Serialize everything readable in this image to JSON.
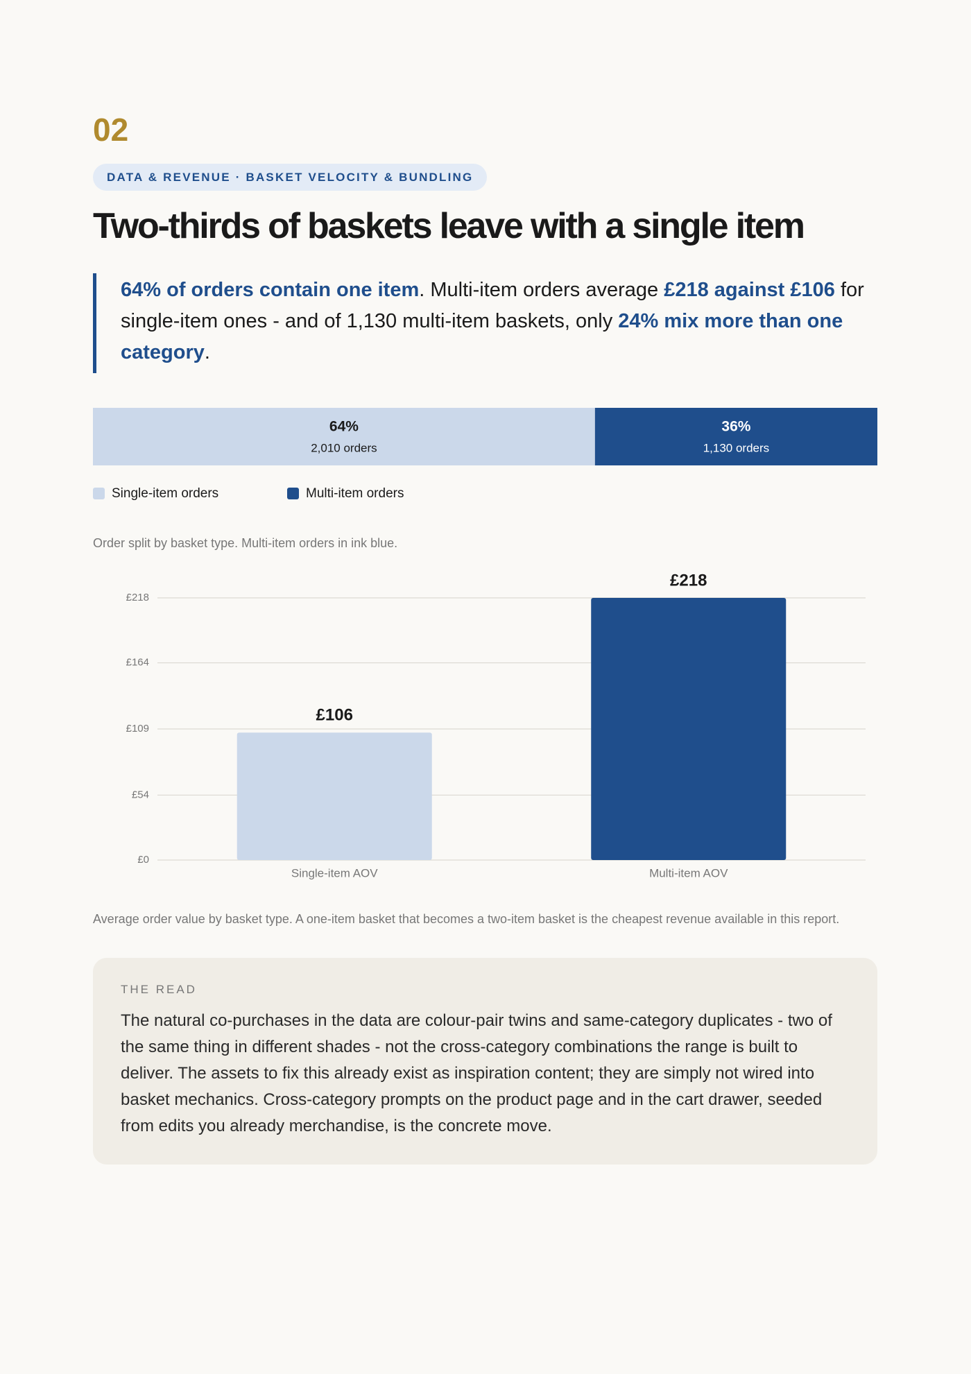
{
  "header": {
    "number": "02",
    "kicker": "DATA & REVENUE · BASKET VELOCITY & BUNDLING",
    "title": "Two-thirds of baskets leave with a single item"
  },
  "lead": [
    {
      "text": "64% of orders contain one item",
      "emphasis": true
    },
    {
      "text": ". Multi-item orders average ",
      "emphasis": false
    },
    {
      "text": "£218 against £106",
      "emphasis": true
    },
    {
      "text": " for single-item ones - and of 1,130 multi-item baskets, only ",
      "emphasis": false
    },
    {
      "text": "24% mix more than one category",
      "emphasis": true
    },
    {
      "text": ".",
      "emphasis": false
    }
  ],
  "chart_data": [
    {
      "type": "stacked-bar",
      "series": [
        {
          "name": "Single-item orders",
          "color": "#cbd8ea",
          "text_color": "#1a1a1a",
          "values": [
            64
          ],
          "value_labels": [
            "64%"
          ],
          "sublabels": [
            "2,010 orders"
          ]
        },
        {
          "name": "Multi-item orders",
          "color": "#1f4e8c",
          "text_color": "#ffffff",
          "values": [
            36
          ],
          "value_labels": [
            "36%"
          ],
          "sublabels": [
            "1,130 orders"
          ]
        }
      ],
      "caption": "Order split by basket type. Multi-item orders in ink blue."
    },
    {
      "type": "bar",
      "categories": [
        "Single-item AOV",
        "Multi-item AOV"
      ],
      "values": [
        106,
        218
      ],
      "value_labels": [
        "£106",
        "£218"
      ],
      "colors": [
        "#cbd8ea",
        "#1f4e8c"
      ],
      "ylim": [
        0,
        218
      ],
      "yticks": [
        {
          "value": 0,
          "label": "£0"
        },
        {
          "value": 54,
          "label": "£54"
        },
        {
          "value": 109,
          "label": "£109"
        },
        {
          "value": 164,
          "label": "£164"
        },
        {
          "value": 218,
          "label": "£218"
        }
      ],
      "grid": true,
      "caption": "Average order value by basket type. A one-item basket that becomes a two-item basket is the cheapest revenue available in this report."
    }
  ],
  "read": {
    "label": "THE READ",
    "text": "The natural co-purchases in the data are colour-pair twins and same-category duplicates - two of the same thing in different shades - not the cross-category combinations the range is built to deliver. The assets to fix this already exist as inspiration content; they are simply not wired into basket mechanics. Cross-category prompts on the product page and in the cart drawer, seeded from edits you already merchandise, is the concrete move."
  }
}
